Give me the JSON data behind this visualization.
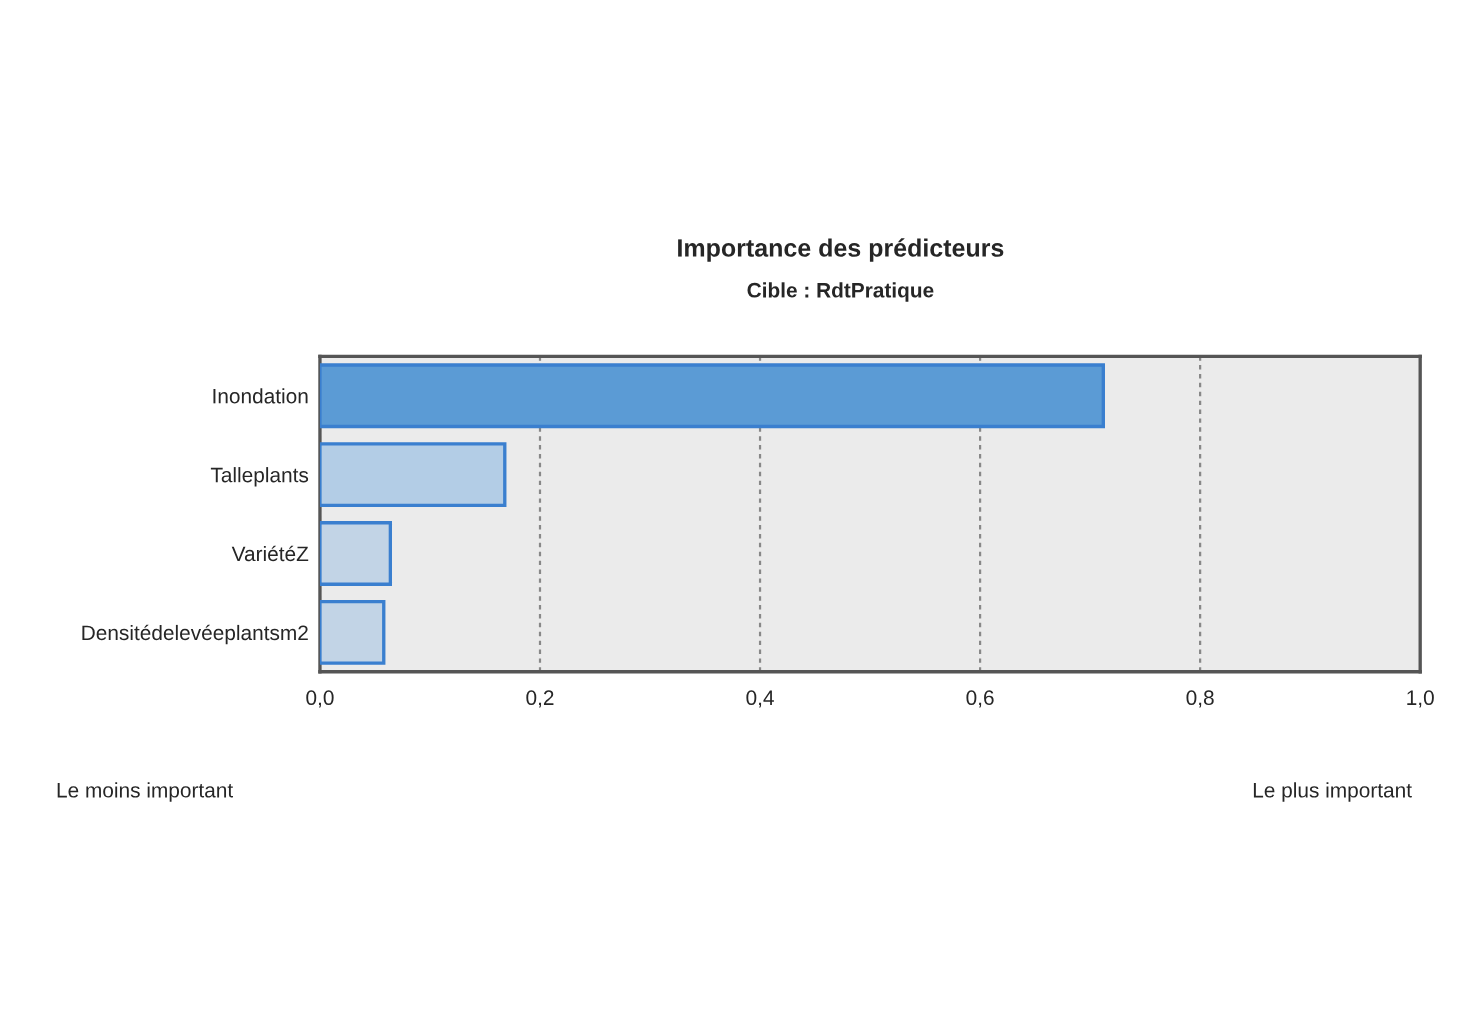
{
  "chart_data": {
    "type": "bar",
    "orientation": "horizontal",
    "title": "Importance des prédicteurs",
    "subtitle": "Cible : RdtPratique",
    "categories": [
      "Inondation",
      "Talleplants",
      "VariétéZ",
      "Densitédelevéeplantsm2"
    ],
    "values": [
      0.712,
      0.168,
      0.064,
      0.058
    ],
    "colors": [
      "#5b9bd5",
      "#b3cde6",
      "#c2d4e6",
      "#c2d4e6"
    ],
    "xlim": [
      0,
      1
    ],
    "xticks": [
      {
        "value": 0,
        "label": "0,0"
      },
      {
        "value": 0.2,
        "label": "0,2"
      },
      {
        "value": 0.4,
        "label": "0,4"
      },
      {
        "value": 0.6,
        "label": "0,6"
      },
      {
        "value": 0.8,
        "label": "0,8"
      },
      {
        "value": 1,
        "label": "1,0"
      }
    ],
    "grid": "x",
    "annotations": [
      "Le moins important",
      "Le plus important"
    ]
  }
}
